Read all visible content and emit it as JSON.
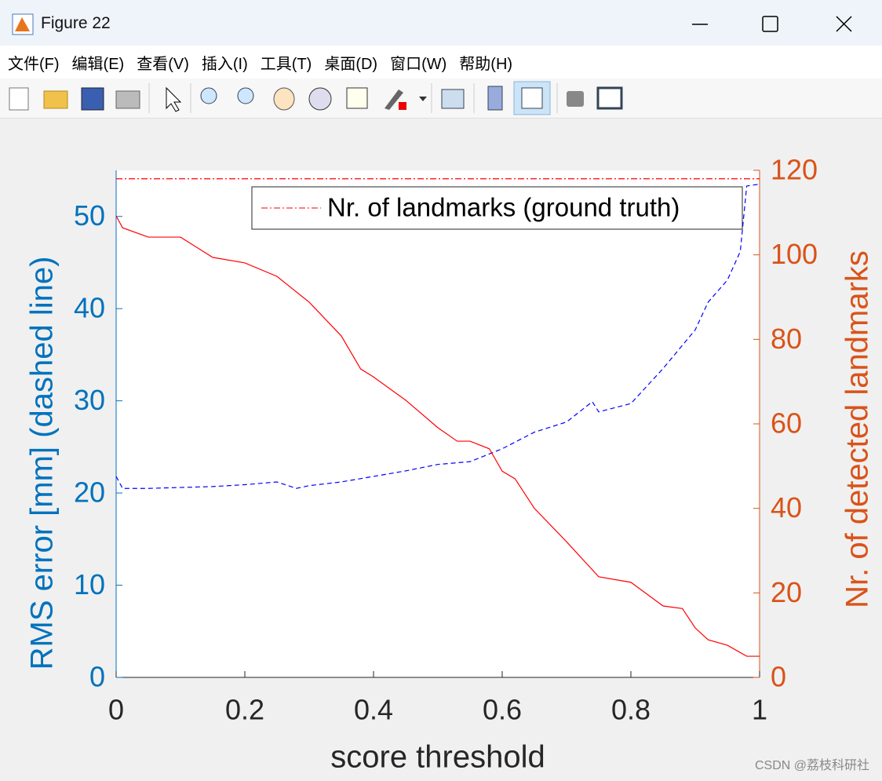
{
  "window": {
    "title": "Figure 22",
    "menu": [
      "文件(F)",
      "编辑(E)",
      "查看(V)",
      "插入(I)",
      "工具(T)",
      "桌面(D)",
      "窗口(W)",
      "帮助(H)"
    ],
    "watermark": "CSDN @荔枝科研社"
  },
  "chart_data": {
    "type": "line",
    "xlabel": "score threshold",
    "ylabel": "RMS error [mm] (dashed line)",
    "y2label": "Nr. of detected landmarks",
    "xlim": [
      0,
      1
    ],
    "xticks": [
      0,
      0.2,
      0.4,
      0.6,
      0.8,
      1
    ],
    "ylim": [
      0,
      55
    ],
    "yticks": [
      0,
      10,
      20,
      30,
      40,
      50
    ],
    "y2lim": [
      0,
      120
    ],
    "y2ticks": [
      0,
      20,
      40,
      60,
      80,
      100,
      120
    ],
    "y_color": "#0072bd",
    "y2_color": "#d95319",
    "legend": "upper right",
    "series": [
      {
        "color": "#0000ff",
        "style": "dashed",
        "x": [
          0,
          0.01,
          0.05,
          0.1,
          0.15,
          0.2,
          0.25,
          0.28,
          0.3,
          0.35,
          0.4,
          0.45,
          0.5,
          0.55,
          0.6,
          0.65,
          0.7,
          0.74,
          0.75,
          0.8,
          0.85,
          0.9,
          0.92,
          0.95,
          0.97,
          0.98,
          1
        ],
        "values": [
          21.8,
          20.5,
          20.5,
          20.6,
          20.7,
          20.9,
          21.2,
          20.5,
          20.8,
          21.2,
          21.8,
          22.4,
          23.1,
          23.4,
          24.8,
          26.6,
          27.7,
          29.9,
          28.8,
          29.7,
          33.5,
          37.7,
          40.7,
          43.1,
          46.2,
          53.3,
          53.5
        ]
      },
      {
        "color": "#ff0000",
        "style": "solid",
        "axis": "y2",
        "x": [
          0,
          0.01,
          0.05,
          0.1,
          0.15,
          0.2,
          0.25,
          0.3,
          0.35,
          0.38,
          0.4,
          0.45,
          0.5,
          0.53,
          0.55,
          0.58,
          0.6,
          0.62,
          0.65,
          0.7,
          0.75,
          0.8,
          0.85,
          0.88,
          0.9,
          0.92,
          0.95,
          0.98,
          1
        ],
        "values": [
          109.2,
          106.4,
          104.2,
          104.2,
          99.4,
          98.1,
          94.9,
          88.8,
          80.8,
          73,
          71.1,
          65.6,
          59.1,
          55.9,
          55.9,
          54.1,
          48.8,
          47,
          40,
          32.1,
          23.8,
          22.5,
          16.9,
          16.3,
          11.7,
          8.9,
          7.6,
          5,
          5
        ]
      },
      {
        "name": "Nr. of landmarks (ground truth)",
        "color": "#ff0000",
        "style": "dashdot",
        "axis": "y2",
        "x": [
          0,
          1
        ],
        "values": [
          118,
          118
        ]
      }
    ]
  }
}
